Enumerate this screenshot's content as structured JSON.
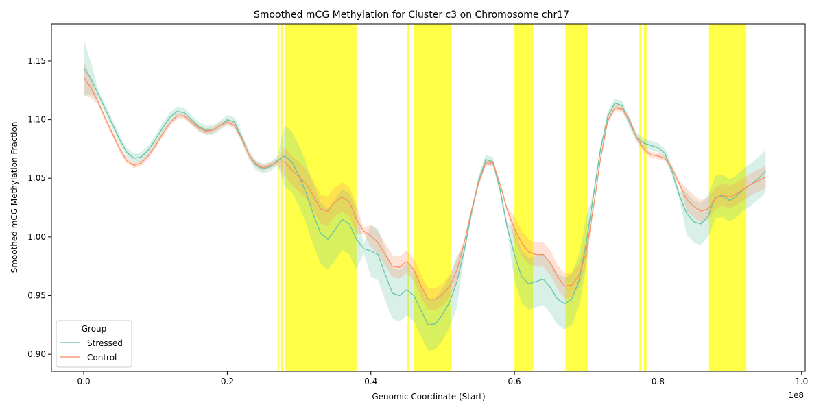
{
  "chart_data": {
    "type": "line",
    "title": "Smoothed mCG Methylation for Cluster c3 on Chromosome chr17",
    "xlabel": "Genomic Coordinate (Start)",
    "ylabel": "Smoothed mCG Methylation Fraction",
    "x_offset_label": "1e8",
    "xlim": [
      -0.045,
      1.005
    ],
    "ylim": [
      0.8855,
      1.1815
    ],
    "x_ticks": [
      0.0,
      0.2,
      0.4,
      0.6,
      0.8,
      1.0
    ],
    "x_tick_labels": [
      "0.0",
      "0.2",
      "0.4",
      "0.6",
      "0.8",
      "1.0"
    ],
    "y_ticks": [
      0.9,
      0.95,
      1.0,
      1.05,
      1.1,
      1.15
    ],
    "y_tick_labels": [
      "0.90",
      "0.95",
      "1.00",
      "1.05",
      "1.10",
      "1.15"
    ],
    "grid": false,
    "legend": {
      "title": "Group",
      "position": "lower-left"
    },
    "highlight_color": "#ffff00",
    "highlight_regions": [
      [
        0.27,
        0.272
      ],
      [
        0.274,
        0.277
      ],
      [
        0.28,
        0.38
      ],
      [
        0.451,
        0.453
      ],
      [
        0.46,
        0.512
      ],
      [
        0.6,
        0.626
      ],
      [
        0.671,
        0.702
      ],
      [
        0.774,
        0.777
      ],
      [
        0.78,
        0.784
      ],
      [
        0.871,
        0.923
      ]
    ],
    "x": [
      0.0,
      0.01,
      0.02,
      0.03,
      0.04,
      0.05,
      0.06,
      0.07,
      0.08,
      0.09,
      0.1,
      0.11,
      0.12,
      0.13,
      0.14,
      0.15,
      0.16,
      0.17,
      0.18,
      0.19,
      0.2,
      0.21,
      0.22,
      0.23,
      0.24,
      0.25,
      0.26,
      0.27,
      0.28,
      0.29,
      0.3,
      0.31,
      0.32,
      0.33,
      0.34,
      0.35,
      0.36,
      0.37,
      0.38,
      0.39,
      0.4,
      0.41,
      0.42,
      0.43,
      0.44,
      0.45,
      0.46,
      0.47,
      0.48,
      0.49,
      0.5,
      0.51,
      0.52,
      0.53,
      0.54,
      0.55,
      0.56,
      0.57,
      0.58,
      0.59,
      0.6,
      0.61,
      0.62,
      0.63,
      0.64,
      0.65,
      0.66,
      0.67,
      0.68,
      0.69,
      0.7,
      0.71,
      0.72,
      0.73,
      0.74,
      0.75,
      0.76,
      0.77,
      0.78,
      0.79,
      0.8,
      0.81,
      0.82,
      0.83,
      0.84,
      0.85,
      0.86,
      0.87,
      0.88,
      0.89,
      0.9,
      0.91,
      0.92,
      0.93,
      0.94,
      0.95
    ],
    "series": [
      {
        "name": "Stressed",
        "color": "#66c2a5",
        "values": [
          1.144,
          1.135,
          1.122,
          1.109,
          1.096,
          1.083,
          1.072,
          1.067,
          1.068,
          1.074,
          1.083,
          1.093,
          1.102,
          1.107,
          1.106,
          1.1,
          1.094,
          1.091,
          1.091,
          1.095,
          1.1,
          1.098,
          1.085,
          1.07,
          1.061,
          1.058,
          1.06,
          1.065,
          1.069,
          1.064,
          1.052,
          1.037,
          1.019,
          1.003,
          0.998,
          1.006,
          1.015,
          1.011,
          0.998,
          0.99,
          0.988,
          0.985,
          0.968,
          0.952,
          0.95,
          0.955,
          0.95,
          0.937,
          0.925,
          0.926,
          0.934,
          0.945,
          0.962,
          0.988,
          1.02,
          1.048,
          1.066,
          1.064,
          1.04,
          1.008,
          0.985,
          0.966,
          0.96,
          0.962,
          0.964,
          0.957,
          0.947,
          0.943,
          0.947,
          0.963,
          0.995,
          1.035,
          1.075,
          1.103,
          1.114,
          1.112,
          1.098,
          1.085,
          1.08,
          1.078,
          1.076,
          1.071,
          1.055,
          1.035,
          1.02,
          1.013,
          1.011,
          1.018,
          1.034,
          1.035,
          1.031,
          1.035,
          1.041,
          1.045,
          1.05,
          1.056
        ]
      },
      {
        "name": "Control",
        "color": "#fc8d62",
        "values": [
          1.136,
          1.127,
          1.115,
          1.101,
          1.088,
          1.075,
          1.065,
          1.061,
          1.063,
          1.069,
          1.078,
          1.088,
          1.097,
          1.103,
          1.103,
          1.098,
          1.093,
          1.09,
          1.091,
          1.095,
          1.098,
          1.095,
          1.084,
          1.07,
          1.062,
          1.059,
          1.061,
          1.064,
          1.064,
          1.057,
          1.051,
          1.045,
          1.035,
          1.024,
          1.022,
          1.03,
          1.034,
          1.03,
          1.015,
          1.005,
          1.001,
          0.995,
          0.985,
          0.975,
          0.974,
          0.979,
          0.972,
          0.958,
          0.947,
          0.947,
          0.951,
          0.958,
          0.972,
          0.995,
          1.022,
          1.046,
          1.063,
          1.063,
          1.045,
          1.023,
          1.007,
          0.995,
          0.987,
          0.985,
          0.985,
          0.978,
          0.966,
          0.958,
          0.959,
          0.967,
          0.987,
          1.025,
          1.067,
          1.099,
          1.11,
          1.109,
          1.1,
          1.085,
          1.075,
          1.07,
          1.069,
          1.067,
          1.058,
          1.045,
          1.032,
          1.026,
          1.022,
          1.024,
          1.033,
          1.036,
          1.034,
          1.037,
          1.041,
          1.045,
          1.048,
          1.051
        ]
      }
    ]
  }
}
